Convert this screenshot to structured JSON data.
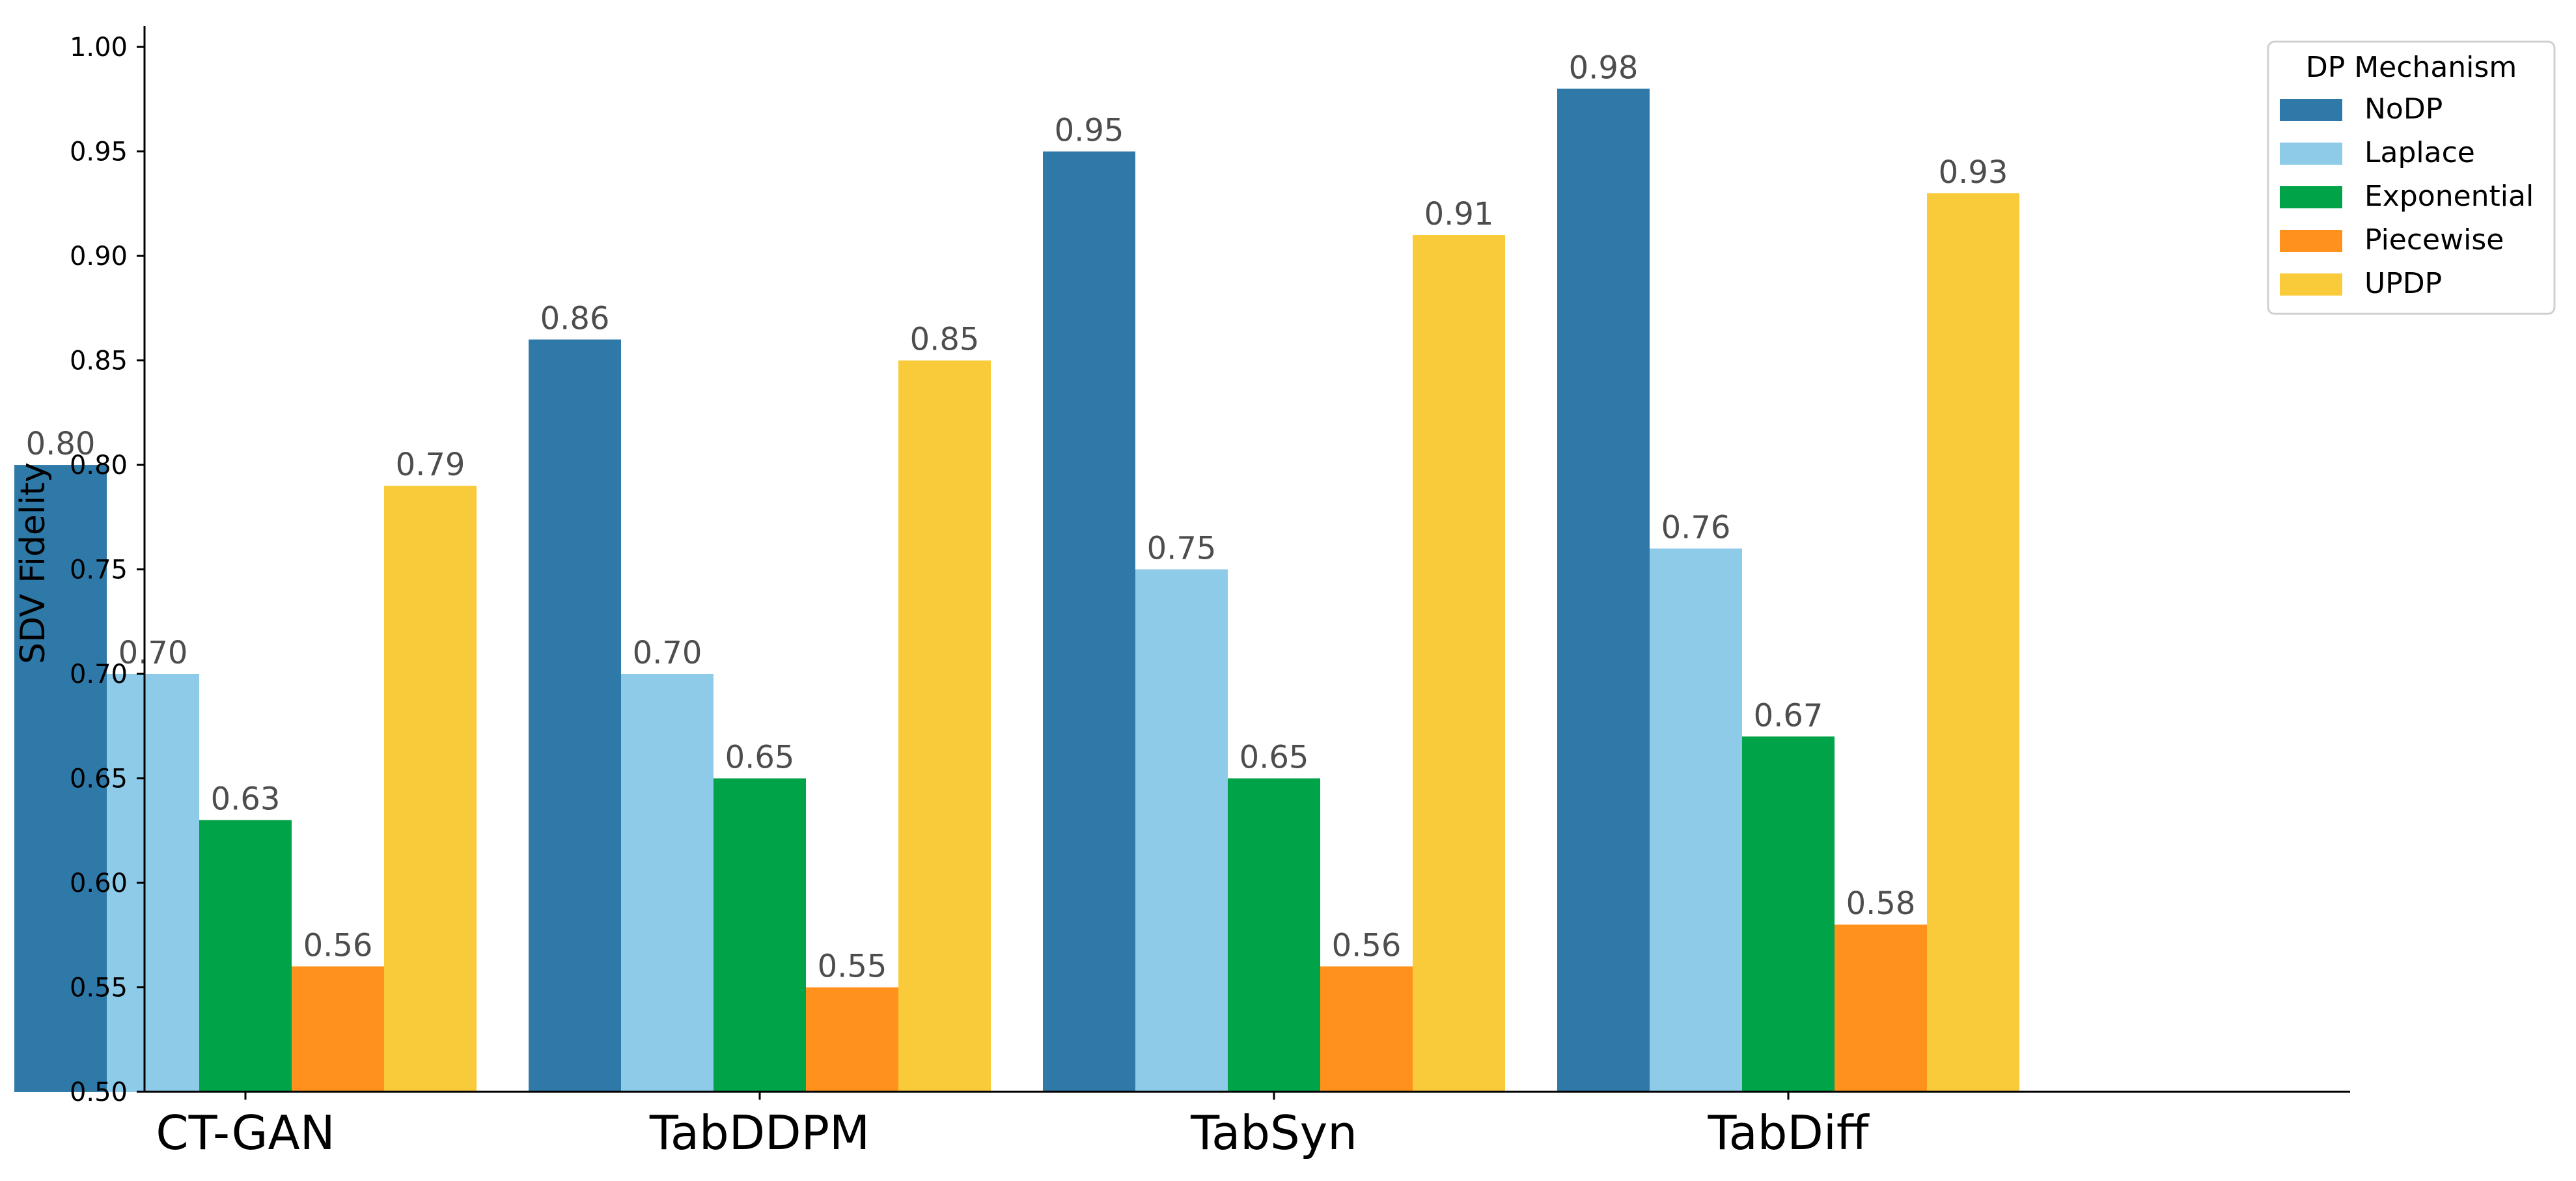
{
  "chart_data": {
    "type": "bar",
    "title": "",
    "xlabel": "",
    "ylabel": "SDV Fidelity",
    "ylim": [
      0.5,
      1.01
    ],
    "yticks": [
      "0.50",
      "0.55",
      "0.60",
      "0.65",
      "0.70",
      "0.75",
      "0.80",
      "0.85",
      "0.90",
      "0.95",
      "1.00"
    ],
    "categories": [
      "CT-GAN",
      "TabDDPM",
      "TabSyn",
      "TabDiff"
    ],
    "series": [
      {
        "name": "NoDP",
        "color": "#2e79a8",
        "values": [
          0.8,
          0.86,
          0.95,
          0.98
        ]
      },
      {
        "name": "Laplace",
        "color": "#8ecbe9",
        "values": [
          0.7,
          0.7,
          0.75,
          0.76
        ]
      },
      {
        "name": "Exponential",
        "color": "#00a347",
        "values": [
          0.63,
          0.65,
          0.65,
          0.67
        ]
      },
      {
        "name": "Piecewise",
        "color": "#ff911c",
        "values": [
          0.56,
          0.55,
          0.56,
          0.58
        ]
      },
      {
        "name": "UPDP",
        "color": "#f9ca39",
        "values": [
          0.79,
          0.85,
          0.91,
          0.93
        ]
      }
    ],
    "legend": {
      "title": "DP Mechanism",
      "placement": "top-right"
    },
    "grid": false
  }
}
